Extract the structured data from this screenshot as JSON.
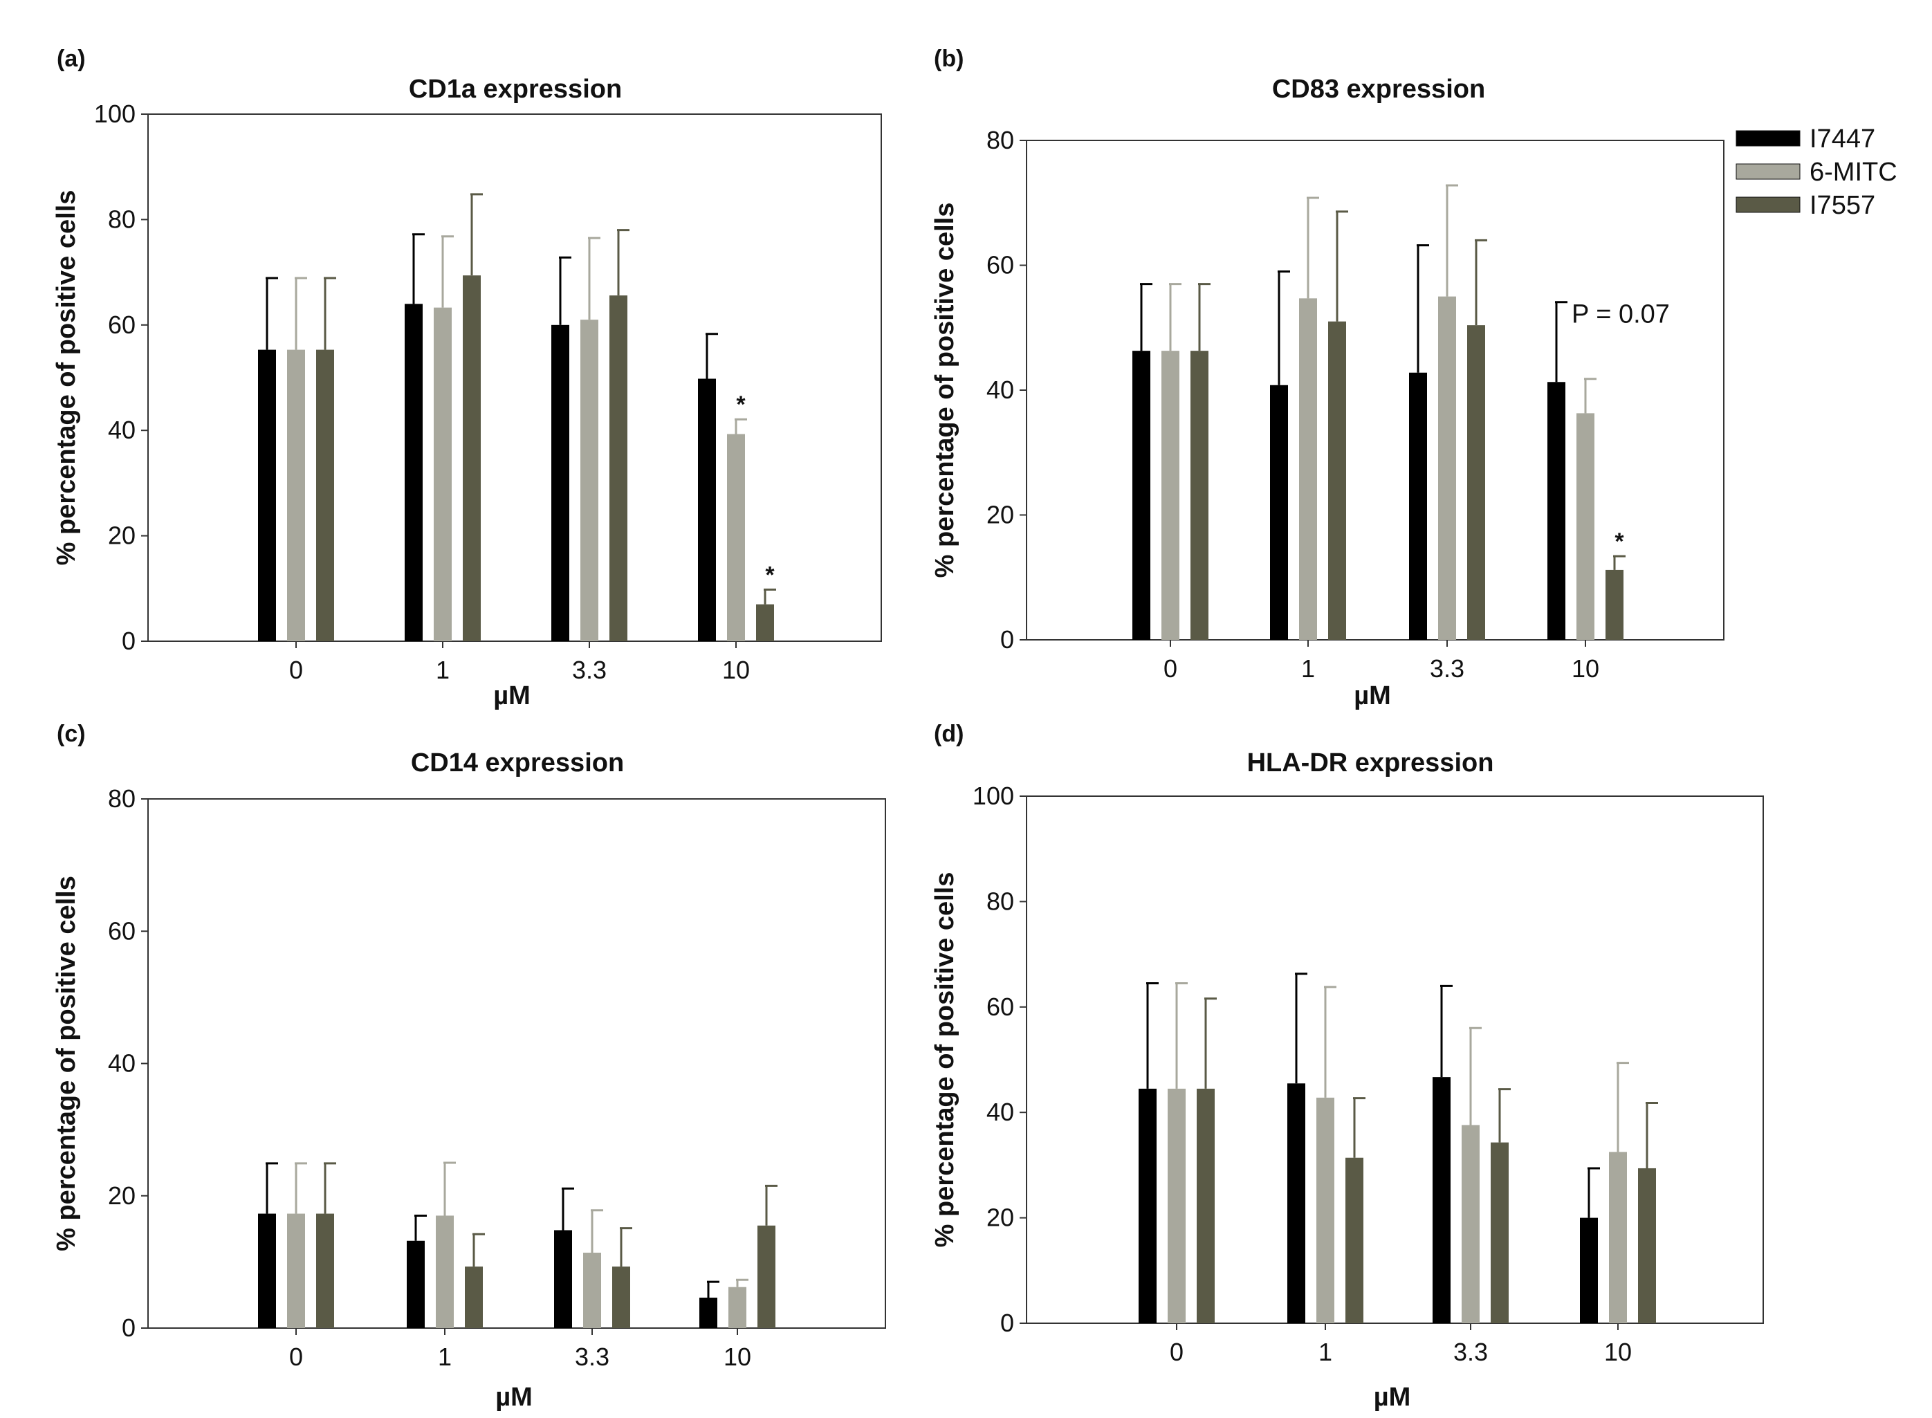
{
  "legend": [
    {
      "name": "I7447",
      "color": "#000000"
    },
    {
      "name": "6-MITC",
      "color": "#a8a89d"
    },
    {
      "name": "I7557",
      "color": "#5a5a46"
    }
  ],
  "chart_data": [
    {
      "type": "bar",
      "panel": "(a)",
      "title": "CD1a expression",
      "xlabel": "µM",
      "ylabel": "% percentage of positive cells",
      "categories": [
        "0",
        "1",
        "3.3",
        "10"
      ],
      "ylim": [
        0,
        100
      ],
      "yticks": [
        0,
        20,
        40,
        60,
        80,
        100
      ],
      "grid": false,
      "series": [
        {
          "name": "I7447",
          "values": [
            55.3,
            64,
            60,
            49.8
          ],
          "errors": [
            13.6,
            13.2,
            12.8,
            8.5
          ]
        },
        {
          "name": "6-MITC",
          "values": [
            55.3,
            63.3,
            61,
            39.3
          ],
          "errors": [
            13.6,
            13.5,
            15.5,
            2.8
          ]
        },
        {
          "name": "I7557",
          "values": [
            55.3,
            69.4,
            65.6,
            7
          ],
          "errors": [
            13.6,
            15.4,
            12.4,
            2.8
          ]
        }
      ],
      "annotations": [
        {
          "series": "6-MITC",
          "category": "10",
          "text": "*"
        },
        {
          "series": "I7557",
          "category": "10",
          "text": "*"
        }
      ]
    },
    {
      "type": "bar",
      "panel": "(b)",
      "title": "CD83 expression",
      "xlabel": "µM",
      "ylabel": "% percentage of positive cells",
      "categories": [
        "0",
        "1",
        "3.3",
        "10"
      ],
      "ylim": [
        0,
        80
      ],
      "yticks": [
        0,
        20,
        40,
        60,
        80
      ],
      "grid": false,
      "series": [
        {
          "name": "I7447",
          "values": [
            46.3,
            40.8,
            42.8,
            41.3
          ],
          "errors": [
            10.7,
            18.2,
            20.4,
            12.8
          ]
        },
        {
          "name": "6-MITC",
          "values": [
            46.3,
            54.7,
            55,
            36.3
          ],
          "errors": [
            10.7,
            16.1,
            17.8,
            5.5
          ]
        },
        {
          "name": "I7557",
          "values": [
            46.3,
            51,
            50.4,
            11.2
          ],
          "errors": [
            10.7,
            17.6,
            13.6,
            2.2
          ]
        }
      ],
      "annotations": [
        {
          "series": "I7557",
          "category": "10",
          "text": "*"
        },
        {
          "category": "10",
          "text": "P = 0.07"
        }
      ]
    },
    {
      "type": "bar",
      "panel": "(c)",
      "title": "CD14 expression",
      "xlabel": "µM",
      "ylabel": "% percentage of positive cells",
      "categories": [
        "0",
        "1",
        "3.3",
        "10"
      ],
      "ylim": [
        0,
        80
      ],
      "yticks": [
        0,
        20,
        40,
        60,
        80
      ],
      "grid": false,
      "series": [
        {
          "name": "I7447",
          "values": [
            17.3,
            13.2,
            14.8,
            4.6
          ],
          "errors": [
            7.6,
            3.8,
            6.3,
            2.4
          ]
        },
        {
          "name": "6-MITC",
          "values": [
            17.3,
            17,
            11.4,
            6.2
          ],
          "errors": [
            7.6,
            8,
            6.4,
            1.1
          ]
        },
        {
          "name": "I7557",
          "values": [
            17.3,
            9.3,
            9.3,
            15.5
          ],
          "errors": [
            7.6,
            4.9,
            5.8,
            6
          ]
        }
      ],
      "annotations": []
    },
    {
      "type": "bar",
      "panel": "(d)",
      "title": "HLA-DR expression",
      "xlabel": "µM",
      "ylabel": "% percentage of positive cells",
      "categories": [
        "0",
        "1",
        "3.3",
        "10"
      ],
      "ylim": [
        0,
        100
      ],
      "yticks": [
        0,
        20,
        40,
        60,
        80,
        100
      ],
      "grid": false,
      "series": [
        {
          "name": "I7447",
          "values": [
            44.5,
            45.5,
            46.7,
            20
          ],
          "errors": [
            20,
            20.8,
            17.3,
            9.4
          ]
        },
        {
          "name": "6-MITC",
          "values": [
            44.5,
            42.8,
            37.6,
            32.5
          ],
          "errors": [
            20,
            21,
            18.4,
            16.9
          ]
        },
        {
          "name": "I7557",
          "values": [
            44.5,
            31.4,
            34.3,
            29.4
          ],
          "errors": [
            17.1,
            11.3,
            10.1,
            12.4
          ]
        }
      ],
      "annotations": []
    }
  ]
}
